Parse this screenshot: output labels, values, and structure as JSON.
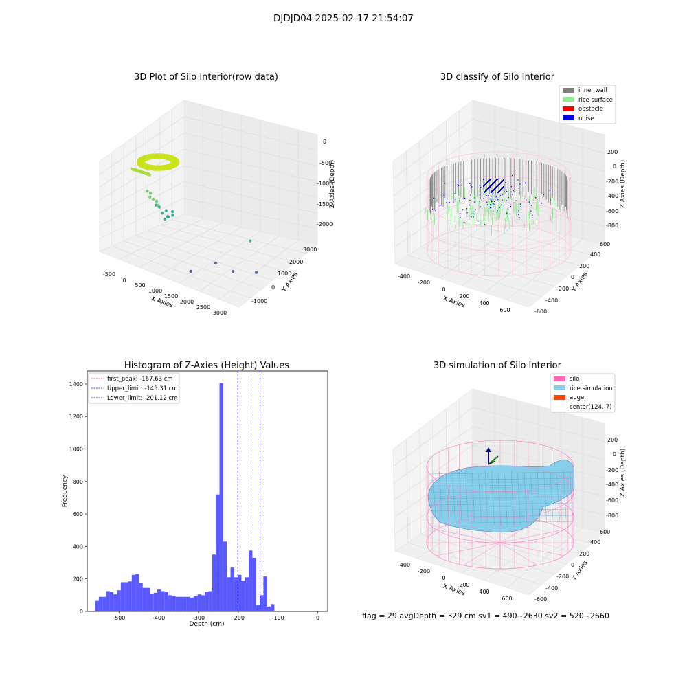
{
  "figure_title": "DJDJD04 2025-02-17 21:54:07",
  "footer_text": "flag = 29  avgDepth = 329 cm  sv1 = 490~2630  sv2 = 520~2660",
  "colors": {
    "histogram_bar": "#5050ff",
    "first_peak_line": "#ff3030",
    "limit_line": "#0000dd",
    "inner_wall": "#808080",
    "rice_surface": "#90ee90",
    "obstacle": "#ff0000",
    "noise": "#0000ff",
    "silo": "#ff69b4",
    "rice_simulation": "#87ceeb",
    "auger": "#ff4500"
  },
  "chart_data": [
    {
      "type": "scatter",
      "projection": "3d",
      "title": "3D Plot of Silo Interior(row data)",
      "xlabel": "X Axies",
      "ylabel": "Y Axies",
      "zlabel": "Z Axies (Depth)",
      "x_ticks": [
        "-500",
        "0",
        "500",
        "1000",
        "1500",
        "2000",
        "2500",
        "3000"
      ],
      "y_ticks": [
        "-1000",
        "0",
        "1000",
        "2000",
        "3000"
      ],
      "z_ticks": [
        "0",
        "-500",
        "-1000",
        "-1500",
        "-2000"
      ],
      "xlim": [
        -600,
        3300
      ],
      "ylim": [
        -1500,
        3500
      ],
      "zlim": [
        -2300,
        0
      ],
      "colormap": "viridis",
      "points": [
        {
          "x": -350,
          "y": -200,
          "z": -450
        },
        {
          "x": -330,
          "y": -150,
          "z": -470
        },
        {
          "x": -310,
          "y": -120,
          "z": -460
        },
        {
          "x": -290,
          "y": -100,
          "z": -480
        },
        {
          "x": -270,
          "y": -80,
          "z": -470
        },
        {
          "x": -250,
          "y": -60,
          "z": -490
        },
        {
          "x": -230,
          "y": -40,
          "z": -480
        },
        {
          "x": -210,
          "y": -20,
          "z": -500
        },
        {
          "x": -190,
          "y": 0,
          "z": -490
        },
        {
          "x": -170,
          "y": 20,
          "z": -510
        },
        {
          "x": -150,
          "y": 40,
          "z": -500
        },
        {
          "x": -130,
          "y": 60,
          "z": -520
        },
        {
          "x": -110,
          "y": 80,
          "z": -510
        },
        {
          "x": -90,
          "y": 100,
          "z": -530
        },
        {
          "x": -70,
          "y": 120,
          "z": -520
        },
        {
          "x": -50,
          "y": 140,
          "z": -540
        },
        {
          "x": -30,
          "y": 160,
          "z": -530
        },
        {
          "x": -10,
          "y": 180,
          "z": -550
        },
        {
          "x": 0,
          "y": 0,
          "z": -900
        },
        {
          "x": 50,
          "y": 100,
          "z": -950
        },
        {
          "x": 100,
          "y": -50,
          "z": -1000
        },
        {
          "x": 150,
          "y": 50,
          "z": -1050
        },
        {
          "x": 200,
          "y": 150,
          "z": -1100
        },
        {
          "x": 250,
          "y": 0,
          "z": -1150
        },
        {
          "x": 300,
          "y": 100,
          "z": -1200
        },
        {
          "x": 350,
          "y": -100,
          "z": -1100
        },
        {
          "x": 400,
          "y": 50,
          "z": -1300
        },
        {
          "x": 450,
          "y": 200,
          "z": -1250
        },
        {
          "x": 500,
          "y": 0,
          "z": -1400
        },
        {
          "x": 550,
          "y": 100,
          "z": -1350
        },
        {
          "x": 600,
          "y": -50,
          "z": -1300
        },
        {
          "x": 650,
          "y": 150,
          "z": -1200
        },
        {
          "x": 700,
          "y": 50,
          "z": -1250
        },
        {
          "x": 1900,
          "y": 100,
          "z": -2000
        },
        {
          "x": 2300,
          "y": 300,
          "z": -2100
        },
        {
          "x": 2400,
          "y": 1200,
          "z": -1500
        },
        {
          "x": 2700,
          "y": 900,
          "z": -2100
        },
        {
          "x": 1500,
          "y": -600,
          "z": -2200
        }
      ]
    },
    {
      "type": "scatter",
      "projection": "3d",
      "title": "3D classify of Silo Interior",
      "xlabel": "X Axies",
      "ylabel": "Y Axies",
      "zlabel": "Z Axies (Depth)",
      "x_ticks": [
        "-400",
        "-200",
        "0",
        "200",
        "400",
        "600"
      ],
      "y_ticks": [
        "-600",
        "-400",
        "-200",
        "0",
        "200",
        "400",
        "600"
      ],
      "z_ticks": [
        "200",
        "0",
        "-200",
        "-400",
        "-600",
        "-800"
      ],
      "xlim": [
        -500,
        700
      ],
      "ylim": [
        -650,
        650
      ],
      "zlim": [
        -900,
        300
      ],
      "legend_position": "top-right",
      "legend": [
        {
          "label": "inner wall",
          "color": "#808080"
        },
        {
          "label": "rice surface",
          "color": "#90ee90"
        },
        {
          "label": "obstacle",
          "color": "#ff0000"
        },
        {
          "label": "noise",
          "color": "#0000ff"
        }
      ]
    },
    {
      "type": "bar",
      "title": "Histogram of Z-Axies (Height) Values",
      "xlabel": "Depth (cm)",
      "ylabel": "Frequency",
      "xlim": [
        -580,
        25
      ],
      "ylim": [
        0,
        1480
      ],
      "x_ticks": [
        -500,
        -400,
        -300,
        -200,
        -100,
        0
      ],
      "y_ticks": [
        0,
        200,
        400,
        600,
        800,
        1000,
        1200,
        1400
      ],
      "bin_start": -560,
      "bin_width": 9.2,
      "values": [
        65,
        90,
        90,
        125,
        120,
        105,
        130,
        180,
        180,
        185,
        225,
        230,
        175,
        145,
        145,
        110,
        115,
        135,
        125,
        120,
        100,
        95,
        90,
        90,
        90,
        90,
        85,
        95,
        105,
        100,
        120,
        125,
        350,
        720,
        1405,
        430,
        210,
        270,
        210,
        225,
        190,
        210,
        375,
        330,
        40,
        100,
        215,
        30,
        45
      ],
      "legend_position": "top-left",
      "lines": [
        {
          "label": "first_peak: -167.63 cm",
          "x": -167.63,
          "color": "#ff3030"
        },
        {
          "label": "Upper_limit: -145.31 cm",
          "x": -145.31,
          "color": "#0000dd"
        },
        {
          "label": "Lower_limit: -201.12 cm",
          "x": -201.12,
          "color": "#0000dd"
        }
      ]
    },
    {
      "type": "surface",
      "projection": "3d",
      "title": "3D simulation of Silo Interior",
      "xlabel": "X Axies",
      "ylabel": "Y Axies",
      "zlabel": "Z Axies (Depth)",
      "x_ticks": [
        "-400",
        "-200",
        "0",
        "200",
        "400",
        "600"
      ],
      "y_ticks": [
        "-600",
        "-400",
        "-200",
        "0",
        "200",
        "400",
        "600"
      ],
      "z_ticks": [
        "200",
        "0",
        "-200",
        "-400",
        "-600",
        "-800"
      ],
      "xlim": [
        -500,
        700
      ],
      "ylim": [
        -650,
        650
      ],
      "zlim": [
        -900,
        300
      ],
      "legend_position": "top-right",
      "legend": [
        {
          "label": "silo",
          "color": "#ff69b4"
        },
        {
          "label": "rice simulation",
          "color": "#87ceeb"
        },
        {
          "label": "auger",
          "color": "#ff4500"
        },
        {
          "label": "center(124,-7)",
          "color": ""
        }
      ]
    }
  ]
}
